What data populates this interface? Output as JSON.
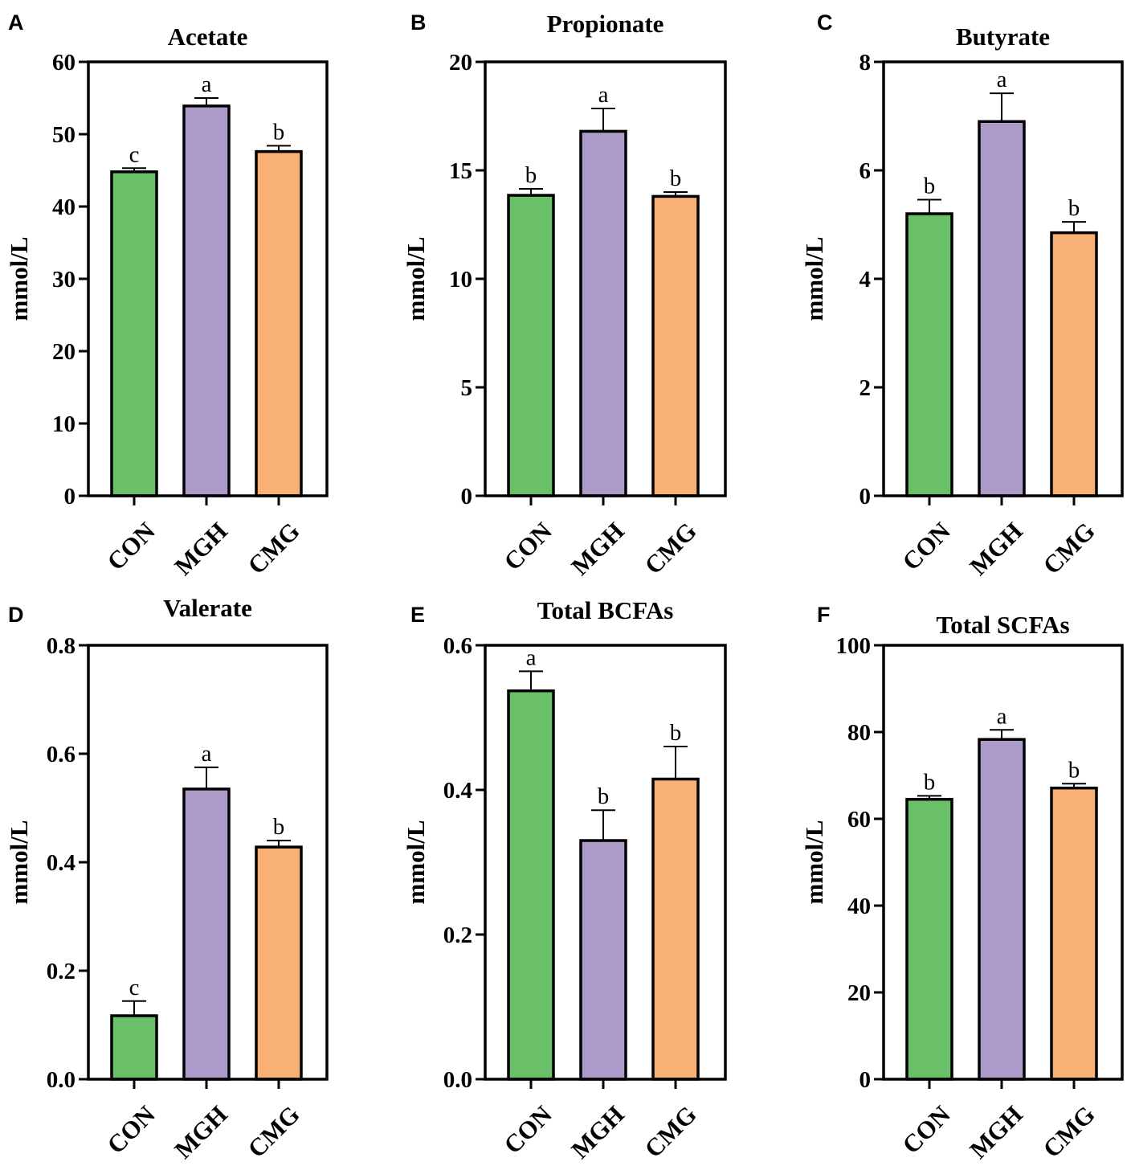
{
  "colors": {
    "CON": "#6abf69",
    "MGH": "#ac9ac8",
    "CMG": "#f8b074",
    "stroke": "#000000"
  },
  "chart_data": [
    {
      "panel": "A",
      "type": "bar",
      "title": "Acetate",
      "ylabel": "mmol/L",
      "categories": [
        "CON",
        "MGH",
        "CMG"
      ],
      "values": [
        44.8,
        53.9,
        47.6
      ],
      "errors": [
        0.5,
        1.1,
        0.8
      ],
      "letters": [
        "c",
        "a",
        "b"
      ],
      "ylim": [
        0,
        60
      ],
      "yticks": [
        "0",
        "10",
        "20",
        "30",
        "40",
        "50",
        "60"
      ]
    },
    {
      "panel": "B",
      "type": "bar",
      "title": "Propionate",
      "ylabel": "mmol/L",
      "categories": [
        "CON",
        "MGH",
        "CMG"
      ],
      "values": [
        13.85,
        16.8,
        13.8
      ],
      "errors": [
        0.3,
        1.05,
        0.2
      ],
      "letters": [
        "b",
        "a",
        "b"
      ],
      "ylim": [
        0,
        20
      ],
      "yticks": [
        "0",
        "5",
        "10",
        "15",
        "20"
      ]
    },
    {
      "panel": "C",
      "type": "bar",
      "title": "Butyrate",
      "ylabel": "mmol/L",
      "categories": [
        "CON",
        "MGH",
        "CMG"
      ],
      "values": [
        5.2,
        6.9,
        4.85
      ],
      "errors": [
        0.26,
        0.52,
        0.2
      ],
      "letters": [
        "b",
        "a",
        "b"
      ],
      "ylim": [
        0,
        8
      ],
      "yticks": [
        "0",
        "2",
        "4",
        "6",
        "8"
      ]
    },
    {
      "panel": "D",
      "type": "bar",
      "title": "Valerate",
      "ylabel": "mmol/L",
      "categories": [
        "CON",
        "MGH",
        "CMG"
      ],
      "values": [
        0.117,
        0.535,
        0.428
      ],
      "errors": [
        0.027,
        0.04,
        0.012
      ],
      "letters": [
        "c",
        "a",
        "b"
      ],
      "ylim": [
        0,
        0.8
      ],
      "yticks": [
        "0.0",
        "0.2",
        "0.4",
        "0.6",
        "0.8"
      ]
    },
    {
      "panel": "E",
      "type": "bar",
      "title": "Total BCFAs",
      "ylabel": "mmol/L",
      "categories": [
        "CON",
        "MGH",
        "CMG"
      ],
      "values": [
        0.537,
        0.33,
        0.415
      ],
      "errors": [
        0.027,
        0.042,
        0.045
      ],
      "letters": [
        "a",
        "b",
        "b"
      ],
      "ylim": [
        0,
        0.6
      ],
      "yticks": [
        "0.0",
        "0.2",
        "0.4",
        "0.6"
      ]
    },
    {
      "panel": "F",
      "type": "bar",
      "title": "Total SCFAs",
      "ylabel": "mmol/L",
      "categories": [
        "CON",
        "MGH",
        "CMG"
      ],
      "values": [
        64.5,
        78.3,
        67.1
      ],
      "errors": [
        0.8,
        2.2,
        1.0
      ],
      "letters": [
        "b",
        "a",
        "b"
      ],
      "ylim": [
        0,
        100
      ],
      "yticks": [
        "0",
        "20",
        "40",
        "60",
        "80",
        "100"
      ]
    }
  ]
}
